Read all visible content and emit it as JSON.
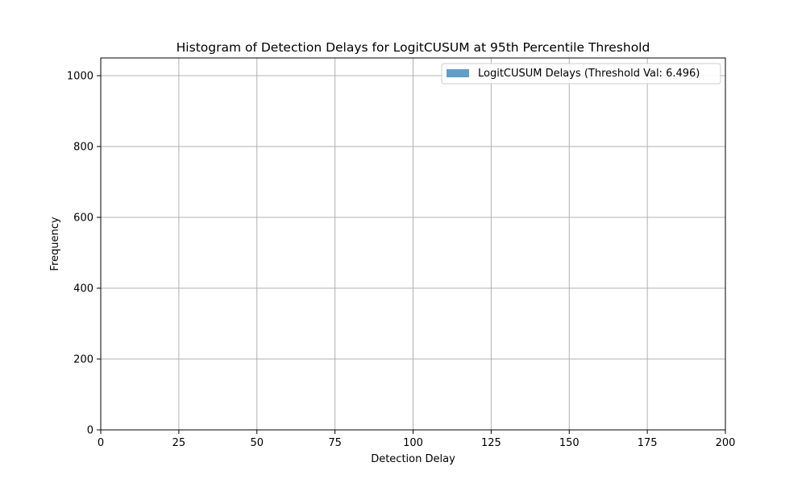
{
  "chart_data": {
    "type": "bar",
    "title": "Histogram of Detection Delays for LogitCUSUM at 95th Percentile Threshold",
    "xlabel": "Detection Delay",
    "ylabel": "Frequency",
    "xlim": [
      0,
      200
    ],
    "ylim": [
      0,
      1050
    ],
    "xticks": [
      0,
      25,
      50,
      75,
      100,
      125,
      150,
      175,
      200
    ],
    "yticks": [
      0,
      200,
      400,
      600,
      800,
      1000
    ],
    "grid": true,
    "legend_position": "top-right",
    "series": [
      {
        "name": "LogitCUSUM Delays (Threshold Val: 6.496)",
        "color": "#5f9ec9",
        "bins": []
      }
    ]
  }
}
